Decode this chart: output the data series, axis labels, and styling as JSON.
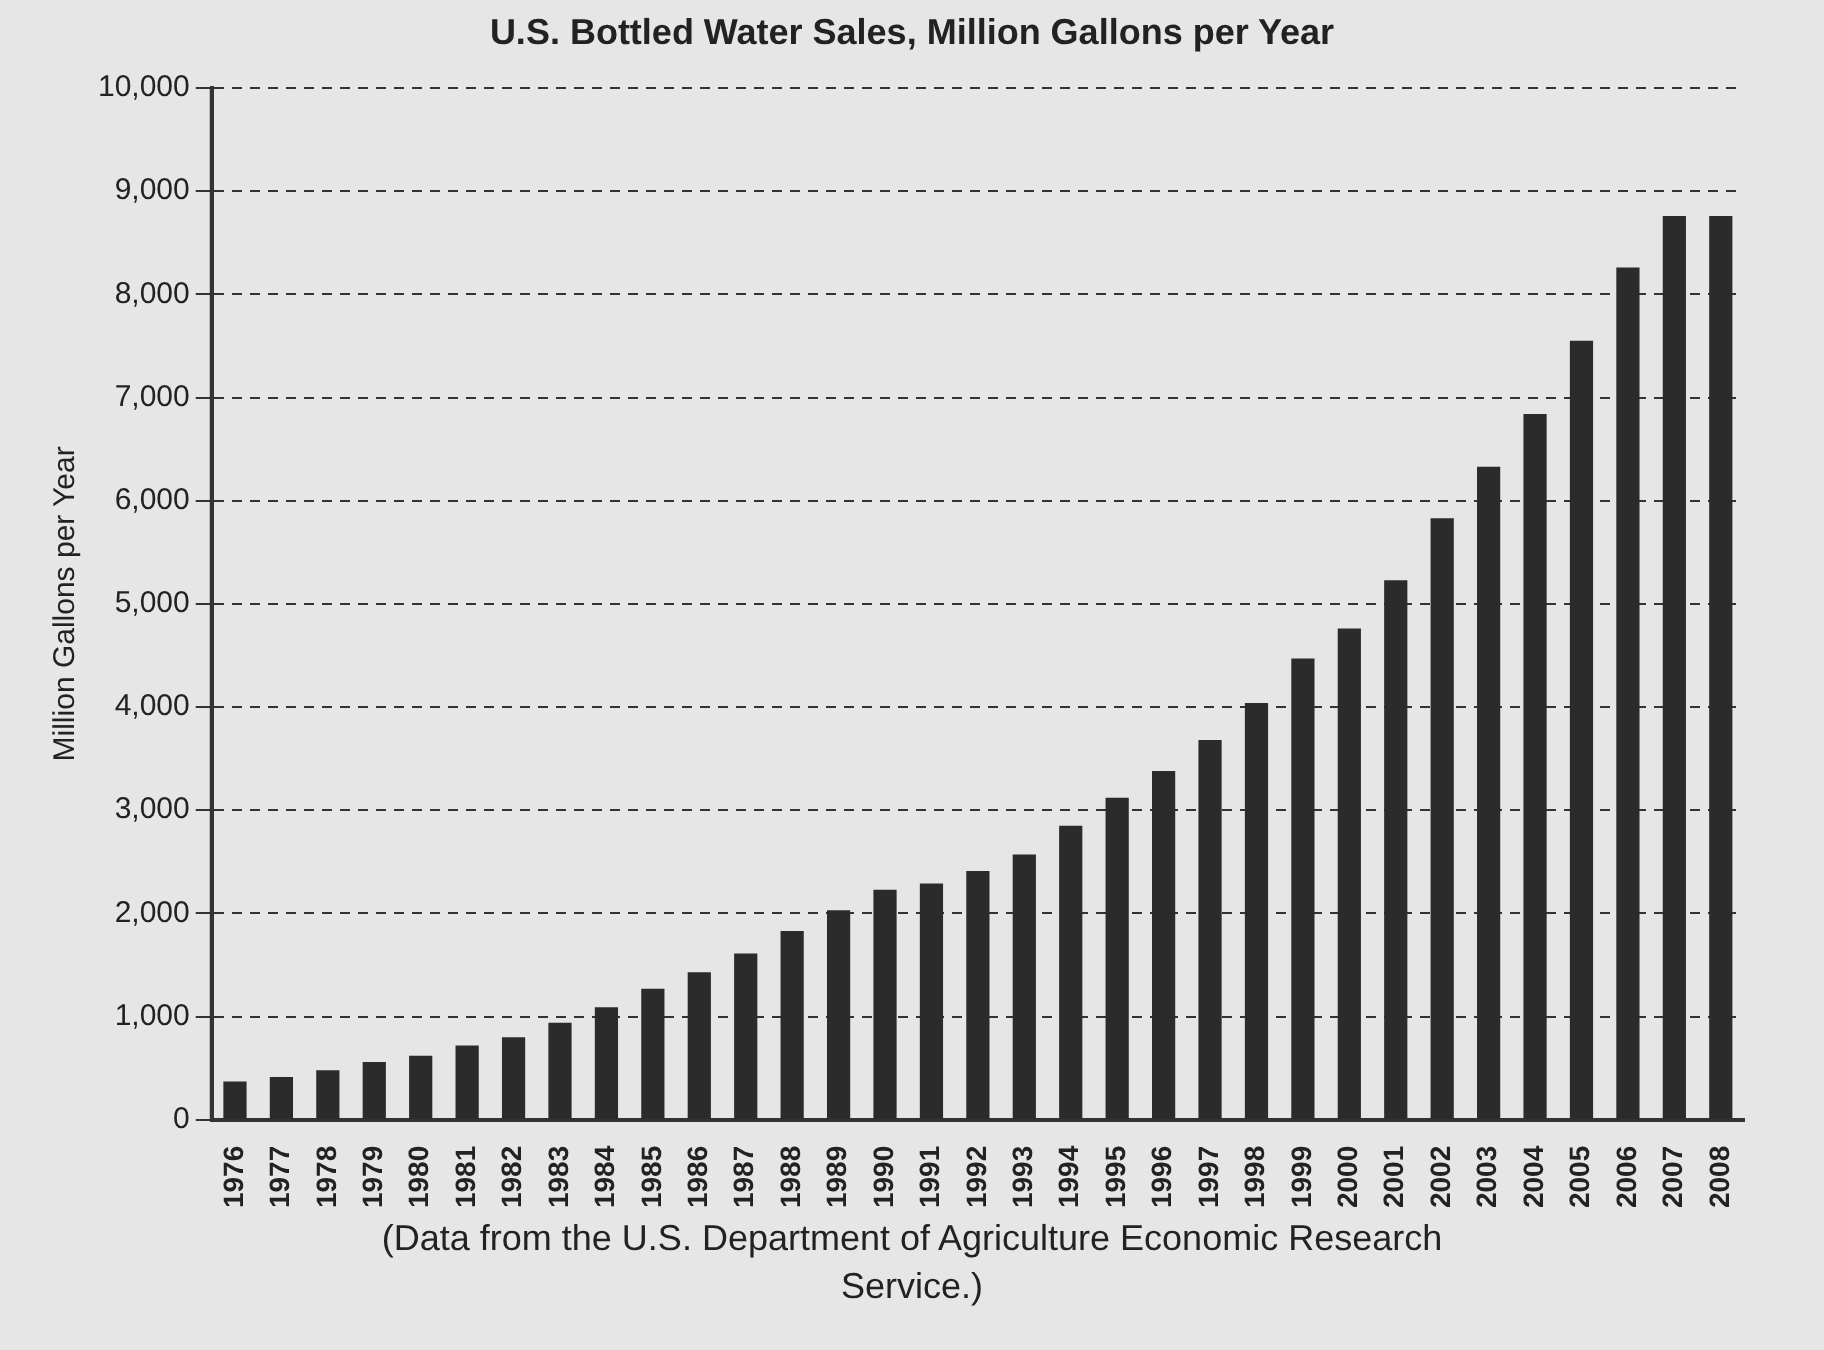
{
  "chart_data": {
    "type": "bar",
    "title": "U.S. Bottled Water Sales, Million Gallons per Year",
    "ylabel": "Million Gallons per Year",
    "categories": [
      "1976",
      "1977",
      "1978",
      "1979",
      "1980",
      "1981",
      "1982",
      "1983",
      "1984",
      "1985",
      "1986",
      "1987",
      "1988",
      "1989",
      "1990",
      "1991",
      "1992",
      "1993",
      "1994",
      "1995",
      "1996",
      "1997",
      "1998",
      "1999",
      "2000",
      "2001",
      "2002",
      "2003",
      "2004",
      "2005",
      "2006",
      "2007",
      "2008"
    ],
    "values": [
      370,
      415,
      480,
      560,
      620,
      720,
      800,
      940,
      1090,
      1270,
      1430,
      1610,
      1830,
      2030,
      2230,
      2290,
      2410,
      2570,
      2850,
      3120,
      3380,
      3680,
      4040,
      4470,
      4760,
      5230,
      5830,
      6330,
      6840,
      7550,
      8260,
      8760,
      8760
    ],
    "color": "#2b2b2b",
    "ylim": [
      0,
      10000
    ],
    "yticks": [
      {
        "value": 0,
        "label": "0"
      },
      {
        "value": 1000,
        "label": "1,000"
      },
      {
        "value": 2000,
        "label": "2,000"
      },
      {
        "value": 3000,
        "label": "3,000"
      },
      {
        "value": 4000,
        "label": "4,000"
      },
      {
        "value": 5000,
        "label": "5,000"
      },
      {
        "value": 6000,
        "label": "6,000"
      },
      {
        "value": 7000,
        "label": "7,000"
      },
      {
        "value": 8000,
        "label": "8,000"
      },
      {
        "value": 9000,
        "label": "9,000"
      },
      {
        "value": 10000,
        "label": "10,000"
      }
    ],
    "grid": "y",
    "legend": false,
    "annotations": [
      "(Data from the U.S. Department of Agriculture Economic Research Service.)"
    ]
  }
}
